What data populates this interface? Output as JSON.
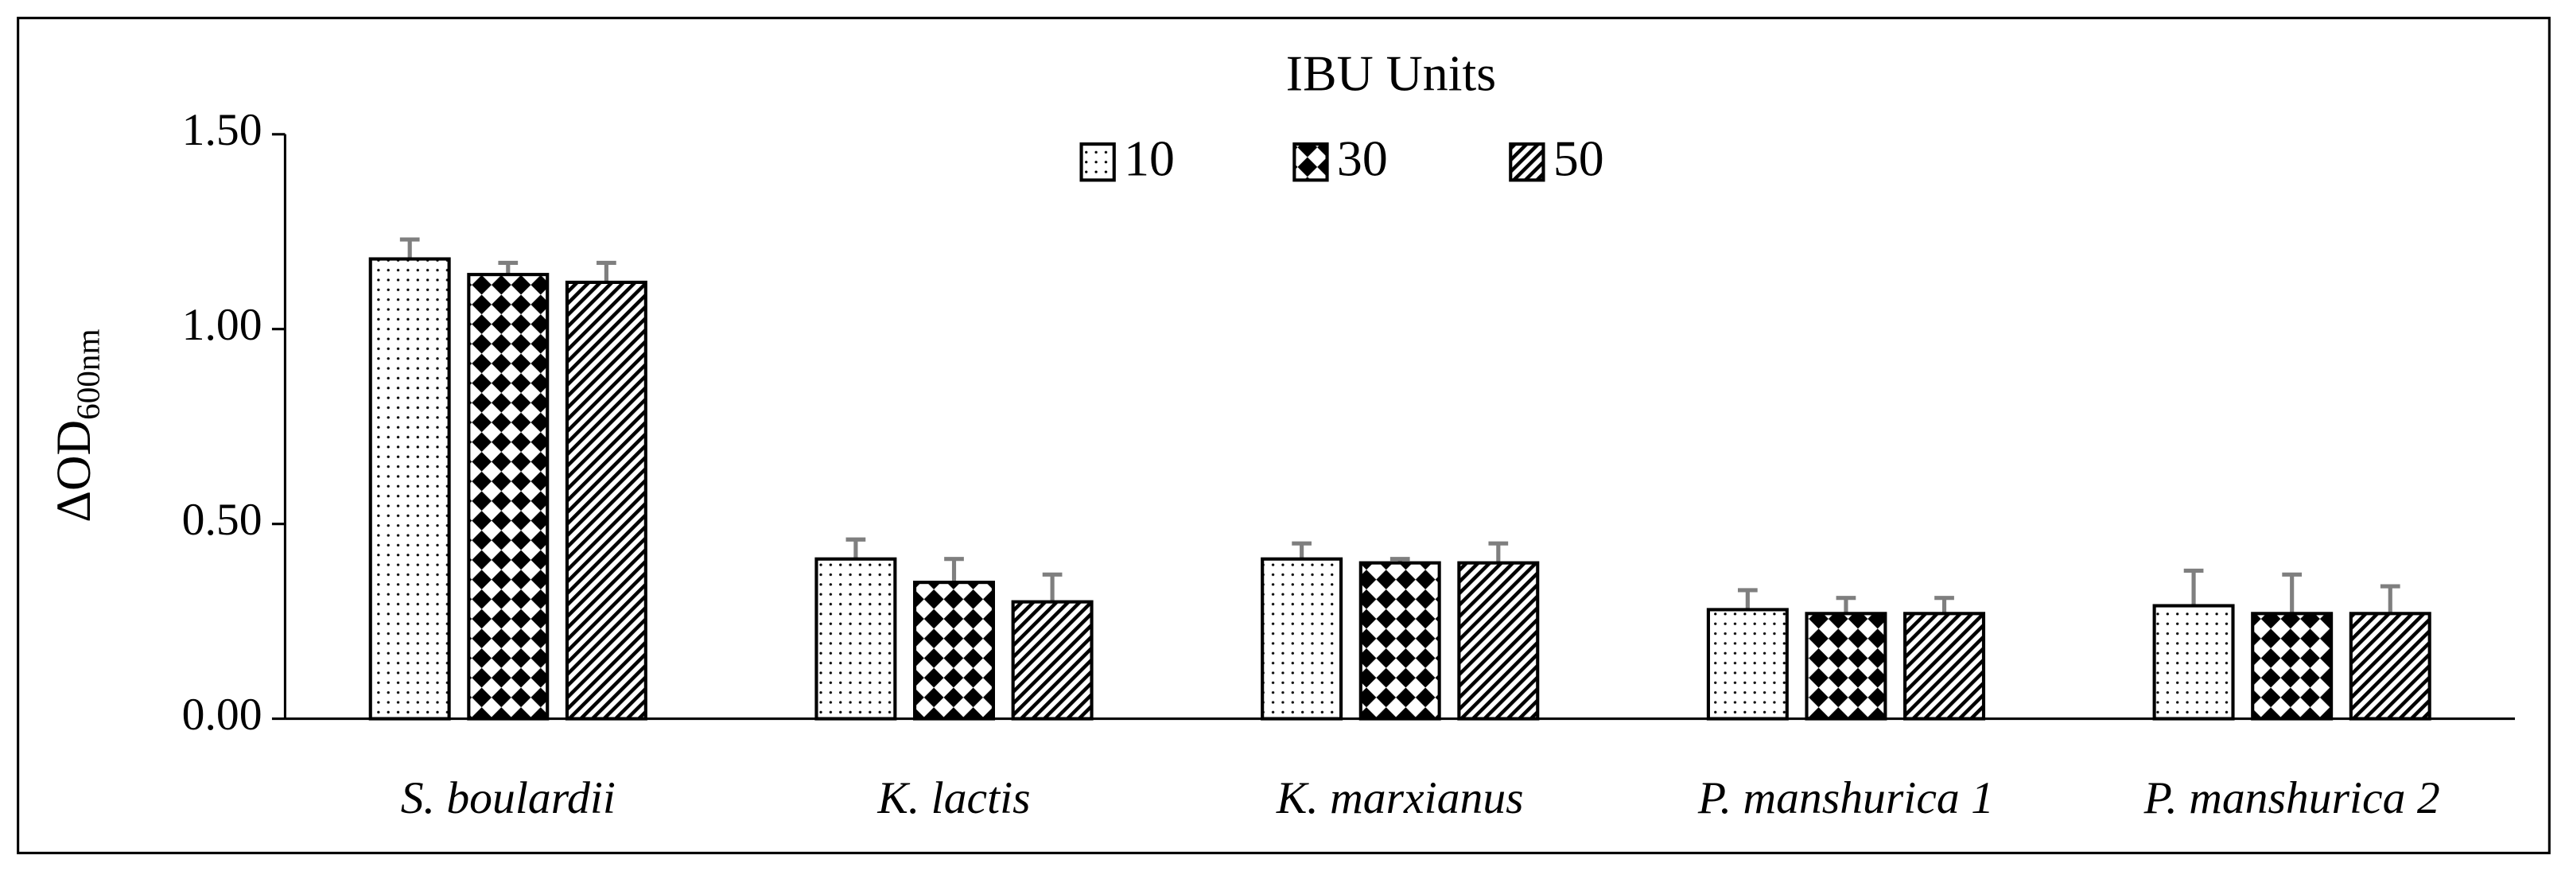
{
  "chart_data": {
    "type": "bar",
    "legend_title": "IBU Units",
    "y_label": "ΔOD",
    "y_label_sub": "600nm",
    "categories": [
      "S. boulardii",
      "K. lactis",
      "K. marxianus",
      "P. manshurica 1",
      "P. manshurica 2"
    ],
    "series": [
      {
        "name": "10",
        "color": "#000000",
        "pattern": "dots",
        "values": [
          1.18,
          0.41,
          0.41,
          0.28,
          0.29
        ],
        "errors": [
          0.05,
          0.05,
          0.04,
          0.05,
          0.09
        ]
      },
      {
        "name": "30",
        "color": "#000000",
        "pattern": "checker",
        "values": [
          1.14,
          0.35,
          0.4,
          0.27,
          0.27
        ],
        "errors": [
          0.03,
          0.06,
          0.01,
          0.04,
          0.1
        ]
      },
      {
        "name": "50",
        "color": "#000000",
        "pattern": "diagonal",
        "values": [
          1.12,
          0.3,
          0.4,
          0.27,
          0.27
        ],
        "errors": [
          0.05,
          0.07,
          0.05,
          0.04,
          0.07
        ]
      }
    ],
    "ylim": [
      0,
      1.5
    ],
    "yticks": [
      {
        "value": 0,
        "label": "0.00"
      },
      {
        "value": 0.5,
        "label": "0.50"
      },
      {
        "value": 1,
        "label": "1.00"
      },
      {
        "value": 1.5,
        "label": "1.50"
      }
    ],
    "legend_position": "top"
  }
}
